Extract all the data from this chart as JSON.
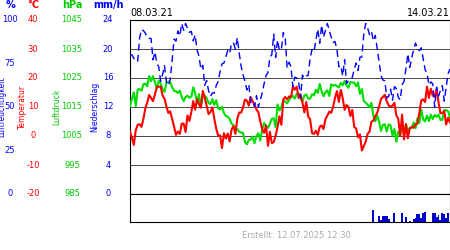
{
  "title_left": "08.03.21",
  "title_right": "14.03.21",
  "footer": "Erstellt: 12.07.2025 12:30",
  "unit1": "%",
  "unit2": "°C",
  "unit3": "hPa",
  "unit4": "mm/h",
  "axis_label_humidity": "Luftfeuchtigkeit",
  "axis_label_temp": "Temperatur",
  "axis_label_pressure": "Luftdruck",
  "axis_label_precip": "Niederschlag",
  "color_humidity": "#0000ff",
  "color_temp": "#ff0000",
  "color_pressure": "#00dd00",
  "color_precip": "#0000cc",
  "bg_color": "#ffffff",
  "n_points": 168,
  "hum_min": 0,
  "hum_max": 100,
  "temp_min": -20,
  "temp_max": 40,
  "pres_min": 985,
  "pres_max": 1045,
  "prec_min": 0,
  "prec_max": 24,
  "hum_ticks": [
    0,
    25,
    50,
    75,
    100
  ],
  "temp_ticks": [
    -20,
    -10,
    0,
    10,
    20,
    30,
    40
  ],
  "pres_ticks": [
    985,
    995,
    1005,
    1015,
    1025,
    1035,
    1045
  ],
  "prec_ticks": [
    0,
    4,
    8,
    12,
    16,
    20,
    24
  ]
}
